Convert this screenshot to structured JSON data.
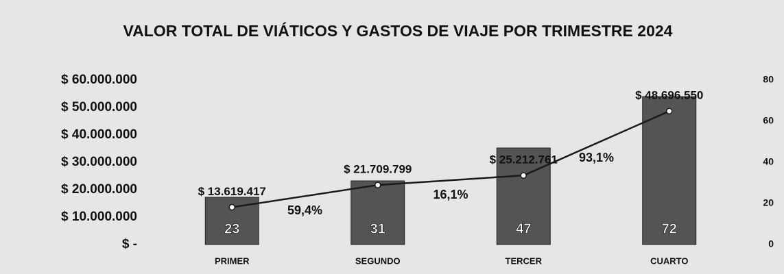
{
  "chart_data": {
    "type": "combo",
    "title": "VALOR TOTAL DE VIÁTICOS Y GASTOS DE VIAJE POR TRIMESTRE 2024",
    "categories": [
      "PRIMER",
      "SEGUNDO",
      "TERCER",
      "CUARTO"
    ],
    "series": [
      {
        "type": "bar",
        "axis": "y2",
        "color": "#545454",
        "values": [
          23,
          31,
          47,
          72
        ]
      },
      {
        "type": "line",
        "color": "#1a1a1a",
        "values": [
          13619417,
          21709799,
          25212761,
          48696550
        ],
        "value_labels": [
          "$ 13.619.417",
          "$ 21.709.799",
          "$ 25.212.761",
          "$ 48.696.550"
        ]
      }
    ],
    "annotations": [
      "59,4%",
      "16,1%",
      "93,1%"
    ],
    "ylim": [
      0,
      60000000
    ],
    "yticks": [
      {
        "value": 0,
        "label": "$ -"
      },
      {
        "value": 10000000,
        "label": "$ 10.000.000"
      },
      {
        "value": 20000000,
        "label": "$ 20.000.000"
      },
      {
        "value": 30000000,
        "label": "$ 30.000.000"
      },
      {
        "value": 40000000,
        "label": "$ 40.000.000"
      },
      {
        "value": 50000000,
        "label": "$ 50.000.000"
      },
      {
        "value": 60000000,
        "label": "$ 60.000.000"
      }
    ],
    "y2lim": [
      0,
      80
    ],
    "y2ticks": [
      0,
      20,
      40,
      60,
      80
    ],
    "grid": false
  }
}
